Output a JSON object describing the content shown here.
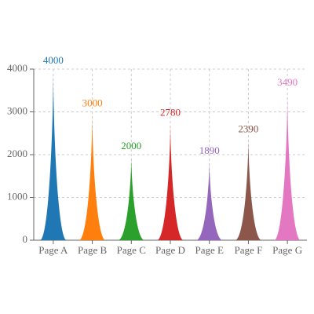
{
  "chart_data": {
    "type": "bar",
    "categories": [
      "Page A",
      "Page B",
      "Page C",
      "Page D",
      "Page E",
      "Page F",
      "Page G"
    ],
    "values": [
      4000,
      3000,
      2000,
      2780,
      1890,
      2390,
      3490
    ],
    "colors": [
      "#1f77b4",
      "#ff7f0e",
      "#2ca02c",
      "#d62728",
      "#9467bd",
      "#8c564b",
      "#e377c2"
    ],
    "ylim": [
      0,
      4000
    ],
    "yticks": [
      0,
      1000,
      2000,
      3000,
      4000
    ],
    "grid": true
  }
}
